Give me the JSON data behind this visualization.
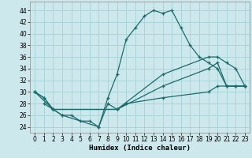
{
  "background_color": "#cde8ec",
  "grid_color": "#a8d4d8",
  "line_color": "#1a6b6b",
  "xlabel": "Humidex (Indice chaleur)",
  "xlim": [
    -0.5,
    23.5
  ],
  "ylim": [
    23,
    45.5
  ],
  "yticks": [
    24,
    26,
    28,
    30,
    32,
    34,
    36,
    38,
    40,
    42,
    44
  ],
  "xticks": [
    0,
    1,
    2,
    3,
    4,
    5,
    6,
    7,
    8,
    9,
    10,
    11,
    12,
    13,
    14,
    15,
    16,
    17,
    18,
    19,
    20,
    21,
    22,
    23
  ],
  "series": [
    {
      "x": [
        0,
        1,
        2,
        3,
        4,
        5,
        6,
        7,
        8,
        9,
        10,
        11,
        12,
        13,
        14,
        15,
        16,
        17,
        18,
        19,
        20,
        21,
        22,
        23
      ],
      "y": [
        30,
        29,
        27,
        26,
        26,
        25,
        25,
        24,
        29,
        33,
        39,
        41,
        43,
        44,
        43.5,
        44,
        41,
        38,
        36,
        35,
        34,
        31,
        31,
        31
      ]
    },
    {
      "x": [
        0,
        2,
        9,
        14,
        19,
        20,
        21,
        22,
        23
      ],
      "y": [
        30,
        27,
        27,
        33,
        36,
        36,
        35,
        34,
        31
      ]
    },
    {
      "x": [
        0,
        1,
        2,
        9,
        14,
        19,
        20,
        21,
        22,
        23
      ],
      "y": [
        30,
        29,
        27,
        27,
        31,
        34,
        35,
        31,
        31,
        31
      ]
    },
    {
      "x": [
        1,
        2,
        3,
        7,
        8,
        9,
        10,
        14,
        19,
        20,
        21,
        22,
        23
      ],
      "y": [
        28,
        27,
        26,
        24,
        28,
        27,
        28,
        29,
        30,
        31,
        31,
        31,
        31
      ]
    }
  ]
}
